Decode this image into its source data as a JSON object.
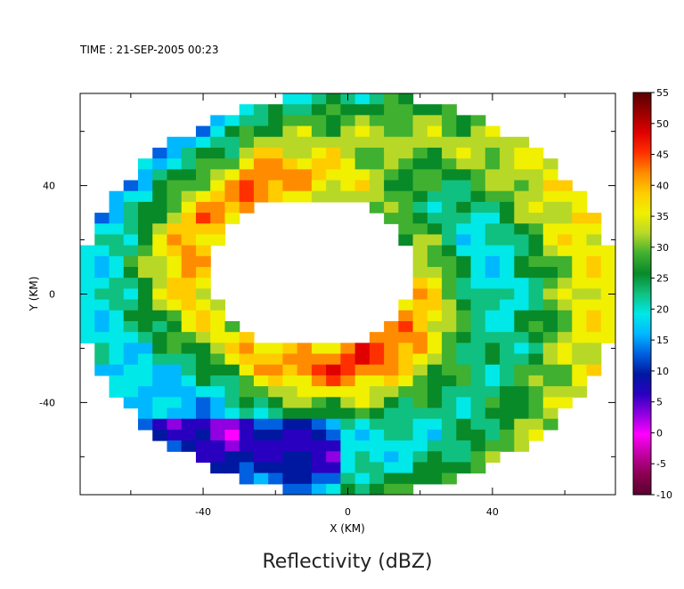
{
  "header": {
    "time_text": "TIME : 21-SEP-2005 00:23"
  },
  "chart_data": {
    "type": "heatmap",
    "title": "Reflectivity (dBZ)",
    "xlabel": "X (KM)",
    "ylabel": "Y (KM)",
    "xlim": [
      -74,
      74
    ],
    "ylim": [
      -74,
      74
    ],
    "x_ticks": [
      -40,
      0,
      40
    ],
    "y_ticks": [
      40,
      0,
      -40
    ],
    "colorbar": {
      "min": -10,
      "max": 55,
      "ticks": [
        55,
        50,
        45,
        40,
        35,
        30,
        25,
        20,
        15,
        10,
        5,
        0,
        -5,
        -10
      ],
      "colors": [
        "#5a0030",
        "#8a0050",
        "#c000a0",
        "#ff00ff",
        "#9000e0",
        "#2a00c0",
        "#0018a0",
        "#0060e0",
        "#00b8ff",
        "#00e8e8",
        "#10c080",
        "#088a28",
        "#40b030",
        "#b8d828",
        "#f0f000",
        "#ffcc00",
        "#ff8c00",
        "#ff3000",
        "#e00000",
        "#9a0000",
        "#5a0000"
      ]
    },
    "field": {
      "center": [
        0,
        0
      ],
      "outer_radius_km": 74,
      "eye_radius_km": 28,
      "eye_center": [
        -10,
        8
      ],
      "rainband_peak_dbz": 50,
      "background_dbz": 27
    }
  }
}
